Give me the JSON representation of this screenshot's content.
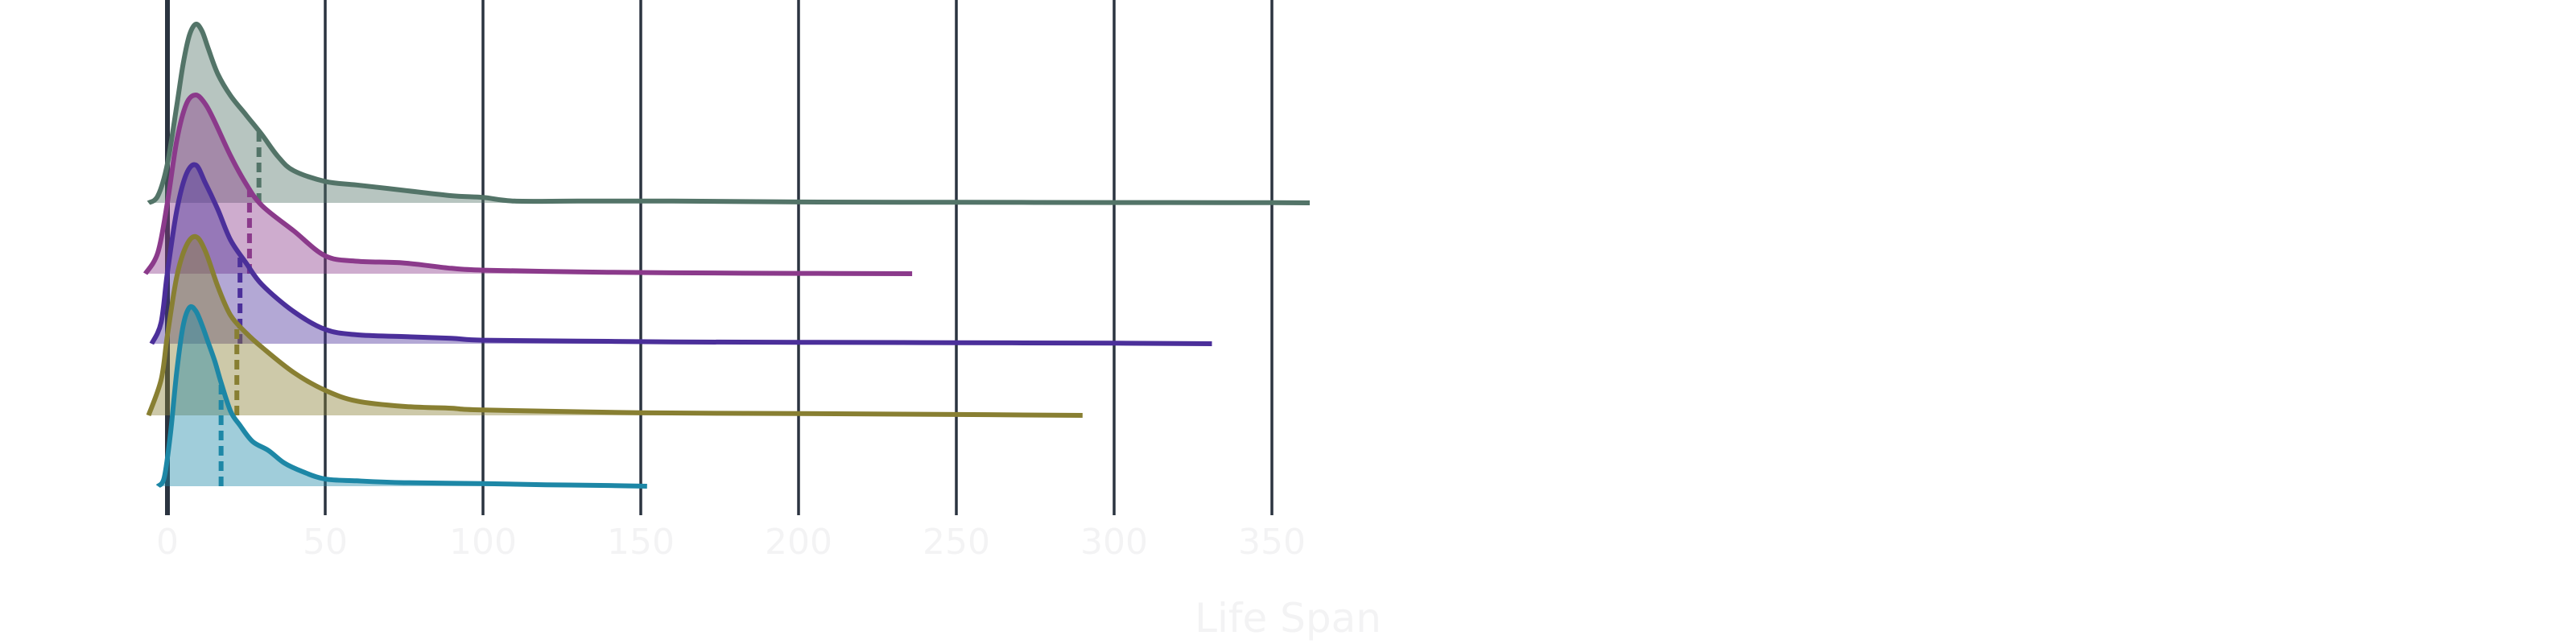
{
  "chart_data": {
    "type": "ridgeline",
    "xlabel": "Life Span",
    "ylabel": "",
    "xlim": [
      -12,
      378
    ],
    "xticks": [
      0,
      50,
      100,
      150,
      200,
      250,
      300,
      350
    ],
    "grid": {
      "vertical": true,
      "horizontal": false
    },
    "series": [
      {
        "color": "#537468",
        "median": 29,
        "x": [
          -6,
          -3,
          0,
          3,
          5,
          7,
          9,
          11,
          13,
          16,
          20,
          25,
          30,
          35,
          40,
          50,
          60,
          75,
          90,
          100,
          110,
          130,
          160,
          200,
          250,
          300,
          350,
          362
        ],
        "density": [
          0,
          0.04,
          0.22,
          0.55,
          0.78,
          0.94,
          1.0,
          0.96,
          0.86,
          0.72,
          0.6,
          0.49,
          0.38,
          0.26,
          0.18,
          0.12,
          0.1,
          0.07,
          0.04,
          0.03,
          0.01,
          0.01,
          0.01,
          0.005,
          0.003,
          0.002,
          0.001,
          0
        ]
      },
      {
        "color": "#8b3a8b",
        "median": 26,
        "x": [
          -7,
          -3,
          0,
          3,
          6,
          9,
          12,
          15,
          20,
          25,
          30,
          40,
          50,
          60,
          75,
          90,
          100,
          130,
          160,
          200,
          236
        ],
        "density": [
          0,
          0.12,
          0.4,
          0.75,
          0.95,
          1.0,
          0.95,
          0.85,
          0.66,
          0.5,
          0.38,
          0.24,
          0.1,
          0.07,
          0.06,
          0.03,
          0.02,
          0.01,
          0.005,
          0.002,
          0
        ]
      },
      {
        "color": "#4b2f9a",
        "median": 23,
        "x": [
          -5,
          -2,
          0,
          3,
          6,
          9,
          12,
          16,
          20,
          25,
          30,
          40,
          50,
          60,
          75,
          90,
          100,
          130,
          160,
          200,
          250,
          300,
          331
        ],
        "density": [
          0,
          0.12,
          0.4,
          0.75,
          0.95,
          1.0,
          0.9,
          0.75,
          0.58,
          0.45,
          0.33,
          0.18,
          0.08,
          0.05,
          0.04,
          0.03,
          0.02,
          0.015,
          0.01,
          0.008,
          0.006,
          0.003,
          0
        ]
      },
      {
        "color": "#887f32",
        "median": 22,
        "x": [
          -6,
          -2,
          0,
          3,
          6,
          9,
          12,
          16,
          20,
          25,
          30,
          40,
          50,
          60,
          75,
          90,
          100,
          150,
          200,
          250,
          290
        ],
        "density": [
          0,
          0.2,
          0.45,
          0.78,
          0.95,
          1.0,
          0.92,
          0.72,
          0.56,
          0.46,
          0.38,
          0.24,
          0.14,
          0.08,
          0.05,
          0.04,
          0.03,
          0.015,
          0.01,
          0.005,
          0
        ]
      },
      {
        "color": "#1d87a6",
        "median": 17,
        "x": [
          -3,
          -1,
          1,
          3,
          5,
          7,
          9,
          11,
          13,
          15,
          17,
          20,
          23,
          27,
          32,
          37,
          43,
          50,
          60,
          75,
          100,
          120,
          140,
          152
        ],
        "density": [
          0,
          0.05,
          0.3,
          0.65,
          0.9,
          1.0,
          0.98,
          0.9,
          0.8,
          0.7,
          0.58,
          0.42,
          0.34,
          0.25,
          0.2,
          0.13,
          0.08,
          0.04,
          0.03,
          0.02,
          0.015,
          0.008,
          0.004,
          0
        ]
      }
    ]
  }
}
